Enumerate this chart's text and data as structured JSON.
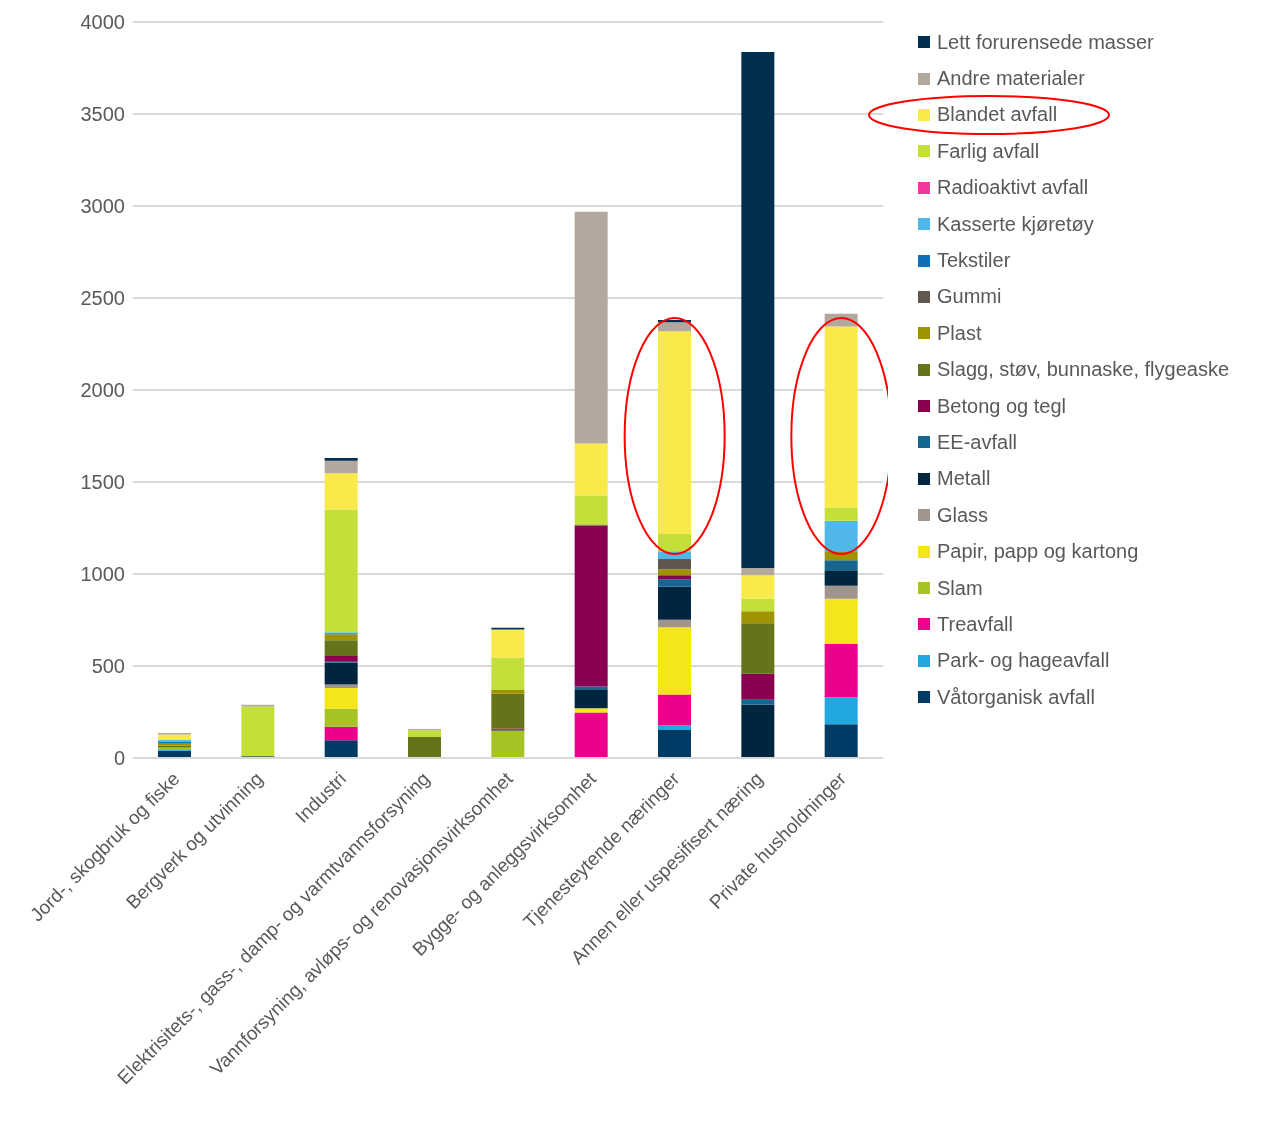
{
  "chart_data": {
    "type": "bar",
    "stacked": true,
    "categories": [
      "Jord-, skogbruk og fiske",
      "Bergverk og utvinning",
      "Industri",
      "Elektrisitets-, gass-, damp- og varmtvannsforsyning",
      "Vannforsyning, avløps- og renovasjonsvirksomhet",
      "Bygge- og anleggsvirksomhet",
      "Tjenesteytende næringer",
      "Annen eller uspesifisert næring",
      "Private husholdninger"
    ],
    "ylim": [
      0,
      4000
    ],
    "yticks": [
      0,
      500,
      1000,
      1500,
      2000,
      2500,
      3000,
      3500,
      4000
    ],
    "grid": "y",
    "legend": "right",
    "series": [
      {
        "name": "Våtorganisk avfall",
        "color": "#003b66",
        "values": [
          40,
          0,
          97,
          0,
          0,
          0,
          152,
          0,
          183
        ]
      },
      {
        "name": "Park- og hageavfall",
        "color": "#22a8e1",
        "values": [
          7,
          0,
          0,
          0,
          0,
          0,
          24,
          0,
          147
        ]
      },
      {
        "name": "Treavfall",
        "color": "#ec008c",
        "values": [
          0,
          0,
          73,
          0,
          0,
          247,
          169,
          0,
          290
        ]
      },
      {
        "name": "Slam",
        "color": "#a5c322",
        "values": [
          10,
          0,
          97,
          0,
          150,
          0,
          0,
          0,
          0
        ]
      },
      {
        "name": "Papir, papp og kartong",
        "color": "#f5e619",
        "values": [
          0,
          0,
          114,
          0,
          0,
          24,
          366,
          0,
          246
        ]
      },
      {
        "name": "Glass",
        "color": "#a0958c",
        "values": [
          0,
          0,
          18,
          0,
          0,
          0,
          40,
          0,
          70
        ]
      },
      {
        "name": "Metall",
        "color": "#00253f",
        "values": [
          0,
          10,
          119,
          0,
          5,
          102,
          180,
          290,
          84
        ]
      },
      {
        "name": "EE-avfall",
        "color": "#156690",
        "values": [
          0,
          0,
          5,
          0,
          0,
          16,
          40,
          27,
          55
        ]
      },
      {
        "name": "Betong og tegl",
        "color": "#8a0050",
        "values": [
          0,
          0,
          31,
          0,
          6,
          874,
          22,
          141,
          0
        ]
      },
      {
        "name": "Slagg, støv, bunnaske, flygeaske",
        "color": "#657418",
        "values": [
          10,
          0,
          86,
          114,
          190,
          6,
          0,
          275,
          0
        ]
      },
      {
        "name": "Plast",
        "color": "#a09300",
        "values": [
          15,
          0,
          33,
          0,
          18,
          0,
          33,
          64,
          44
        ]
      },
      {
        "name": "Gummi",
        "color": "#61574f",
        "values": [
          0,
          0,
          0,
          0,
          0,
          0,
          55,
          0,
          0
        ]
      },
      {
        "name": "Tekstiler",
        "color": "#0d71b9",
        "values": [
          8,
          0,
          5,
          0,
          0,
          0,
          0,
          0,
          0
        ]
      },
      {
        "name": "Kasserte kjøretøy",
        "color": "#50b8e9",
        "values": [
          8,
          0,
          5,
          0,
          0,
          0,
          42,
          0,
          170
        ]
      },
      {
        "name": "Radioaktivt avfall",
        "color": "#f0379f",
        "values": [
          0,
          0,
          0,
          0,
          0,
          0,
          0,
          0,
          0
        ]
      },
      {
        "name": "Farlig avfall",
        "color": "#c3e03a",
        "values": [
          0,
          270,
          667,
          37,
          176,
          157,
          95,
          70,
          71
        ]
      },
      {
        "name": "Blandet avfall",
        "color": "#f9e94a",
        "values": [
          30,
          0,
          198,
          0,
          154,
          283,
          1101,
          126,
          985
        ]
      },
      {
        "name": "Andre materialer",
        "color": "#b3a89e",
        "values": [
          8,
          9,
          68,
          7,
          0,
          1260,
          49,
          40,
          70
        ]
      },
      {
        "name": "Lett forurensede masser",
        "color": "#002f4f",
        "values": [
          0,
          0,
          15,
          0,
          9,
          0,
          13,
          2804,
          0
        ]
      }
    ]
  }
}
